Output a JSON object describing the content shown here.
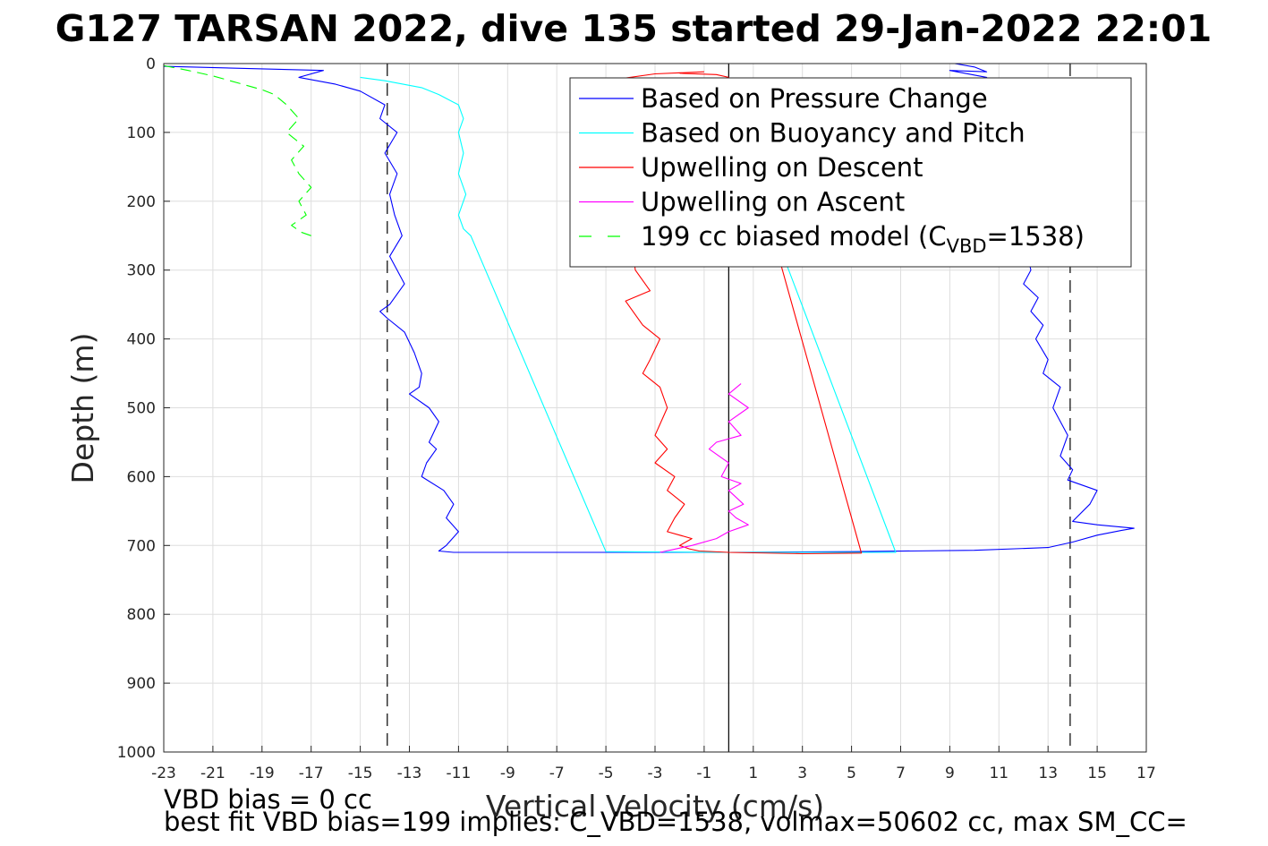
{
  "figure": {
    "title": "G127 TARSAN 2022, dive 135 started 29-Jan-2022 22:01",
    "footer_line1": "VBD bias = 0 cc",
    "footer_line2": "best fit VBD bias=199 implies: C_VBD=1538, volmax=50602 cc, max SM_CC="
  },
  "chart_data": {
    "type": "line",
    "title": "G127 TARSAN 2022, dive 135 started 29-Jan-2022 22:01",
    "xlabel": "Vertical Velocity (cm/s)",
    "ylabel": "Depth (m)",
    "xlim": [
      -23,
      17
    ],
    "ylim": [
      0,
      1000
    ],
    "y_reversed": true,
    "grid": true,
    "legend_placement": "upper-right",
    "xticks": [
      -23,
      -21,
      -19,
      -17,
      -15,
      -13,
      -11,
      -9,
      -7,
      -5,
      -3,
      -1,
      1,
      3,
      5,
      7,
      9,
      11,
      13,
      15,
      17
    ],
    "yticks": [
      0,
      100,
      200,
      300,
      400,
      500,
      600,
      700,
      800,
      900,
      1000
    ],
    "reference_lines": [
      {
        "type": "vertical",
        "x": -13.9,
        "style": "dashed",
        "color": "#000000"
      },
      {
        "type": "vertical",
        "x": 13.9,
        "style": "dashed",
        "color": "#000000"
      },
      {
        "type": "vertical",
        "x": 0,
        "style": "solid",
        "color": "#000000"
      }
    ],
    "series": [
      {
        "name": "Based on Pressure Change",
        "color": "#0000ff",
        "style": "solid",
        "x": [
          -23,
          -16.5,
          -17.5,
          -16.0,
          -15.0,
          -14.0,
          -14.2,
          -13.5,
          -14.0,
          -13.5,
          -13.8,
          -13.6,
          -13.3,
          -13.8,
          -13.5,
          -13.2,
          -13.8,
          -14.2,
          -13.9,
          -13.2,
          -12.8,
          -12.5,
          -12.6,
          -13.0,
          -12.2,
          -11.8,
          -12.2,
          -11.9,
          -12.3,
          -12.5,
          -11.6,
          -11.2,
          -11.5,
          -11.0,
          -11.5,
          -11.8,
          -11.2,
          -10.0,
          -5.0,
          0.0,
          5.0,
          10.0,
          13.0,
          14.0,
          15.0,
          16.0,
          16.5,
          15.0,
          14.0,
          14.7,
          15.0,
          13.8,
          14.0,
          13.5,
          13.8,
          13.2,
          13.5,
          12.8,
          13.0,
          12.5,
          12.8,
          12.3,
          12.6,
          12.0,
          12.3,
          10.5,
          9.0,
          10.5,
          10.0,
          9.2
        ],
        "y": [
          4,
          10,
          20,
          30,
          40,
          60,
          80,
          100,
          130,
          160,
          190,
          220,
          250,
          280,
          300,
          320,
          350,
          360,
          370,
          390,
          420,
          450,
          470,
          480,
          500,
          520,
          550,
          560,
          580,
          600,
          620,
          640,
          660,
          680,
          700,
          708,
          710,
          710,
          710,
          710,
          709,
          707,
          703,
          695,
          685,
          678,
          675,
          670,
          665,
          640,
          620,
          605,
          590,
          570,
          540,
          500,
          470,
          450,
          430,
          400,
          380,
          360,
          340,
          320,
          300,
          20,
          10,
          12,
          5,
          0
        ]
      },
      {
        "name": "Based on Buoyancy and Pitch",
        "color": "#00ffff",
        "style": "solid",
        "x": [
          -15.0,
          -14.0,
          -12.5,
          -11.8,
          -11.0,
          -10.8,
          -11.0,
          -10.8,
          -11.0,
          -10.7,
          -11.0,
          -10.8,
          -10.5,
          -5.0,
          0.0,
          5.0,
          6.8,
          0.0,
          -6.0,
          -1.0
        ],
        "y": [
          20,
          25,
          35,
          45,
          60,
          80,
          100,
          130,
          160,
          190,
          220,
          240,
          250,
          709,
          710,
          710,
          710,
          70,
          71,
          72
        ]
      },
      {
        "name": "Upwelling on Descent",
        "color": "#ff0000",
        "style": "solid",
        "x": [
          -1.0,
          -3.0,
          -5.0,
          -3.8,
          -3.2,
          -4.2,
          -3.5,
          -2.8,
          -3.2,
          -3.5,
          -2.8,
          -2.5,
          -3.0,
          -2.5,
          -3.0,
          -2.2,
          -2.5,
          -1.8,
          -2.2,
          -2.5,
          -1.5,
          -2.0,
          -1.6,
          -1.2,
          0.0,
          3.0,
          5.4,
          0.0,
          -0.5,
          -2.0
        ],
        "y": [
          12,
          15,
          25,
          300,
          330,
          345,
          380,
          400,
          430,
          450,
          470,
          500,
          540,
          560,
          580,
          600,
          620,
          640,
          660,
          680,
          690,
          700,
          705,
          708,
          710,
          712,
          711,
          20,
          16,
          14
        ]
      },
      {
        "name": "Upwelling on Ascent",
        "color": "#ff00ff",
        "style": "solid",
        "x": [
          0.5,
          0.0,
          0.8,
          0.0,
          0.5,
          -0.5,
          -0.8,
          0.0,
          -0.3,
          0.5,
          0.0,
          0.6,
          0.0,
          0.3,
          0.8,
          0.0,
          -0.5,
          -1.5,
          -2.8
        ],
        "y": [
          465,
          480,
          500,
          520,
          540,
          550,
          560,
          580,
          600,
          610,
          620,
          640,
          650,
          660,
          670,
          680,
          690,
          700,
          710
        ]
      },
      {
        "name": "199 cc biased model (C_VBD=1538)",
        "color": "#00ff00",
        "style": "dashed",
        "x": [
          -23.0,
          -22.0,
          -21.0,
          -20.0,
          -19.0,
          -18.5,
          -18.0,
          -17.5,
          -18.0,
          -17.3,
          -17.8,
          -17.5,
          -17.0,
          -17.5,
          -17.2,
          -17.8,
          -17.4,
          -17.0
        ],
        "y": [
          3,
          10,
          18,
          28,
          38,
          45,
          60,
          80,
          100,
          120,
          140,
          160,
          180,
          200,
          220,
          235,
          245,
          250
        ]
      }
    ]
  }
}
